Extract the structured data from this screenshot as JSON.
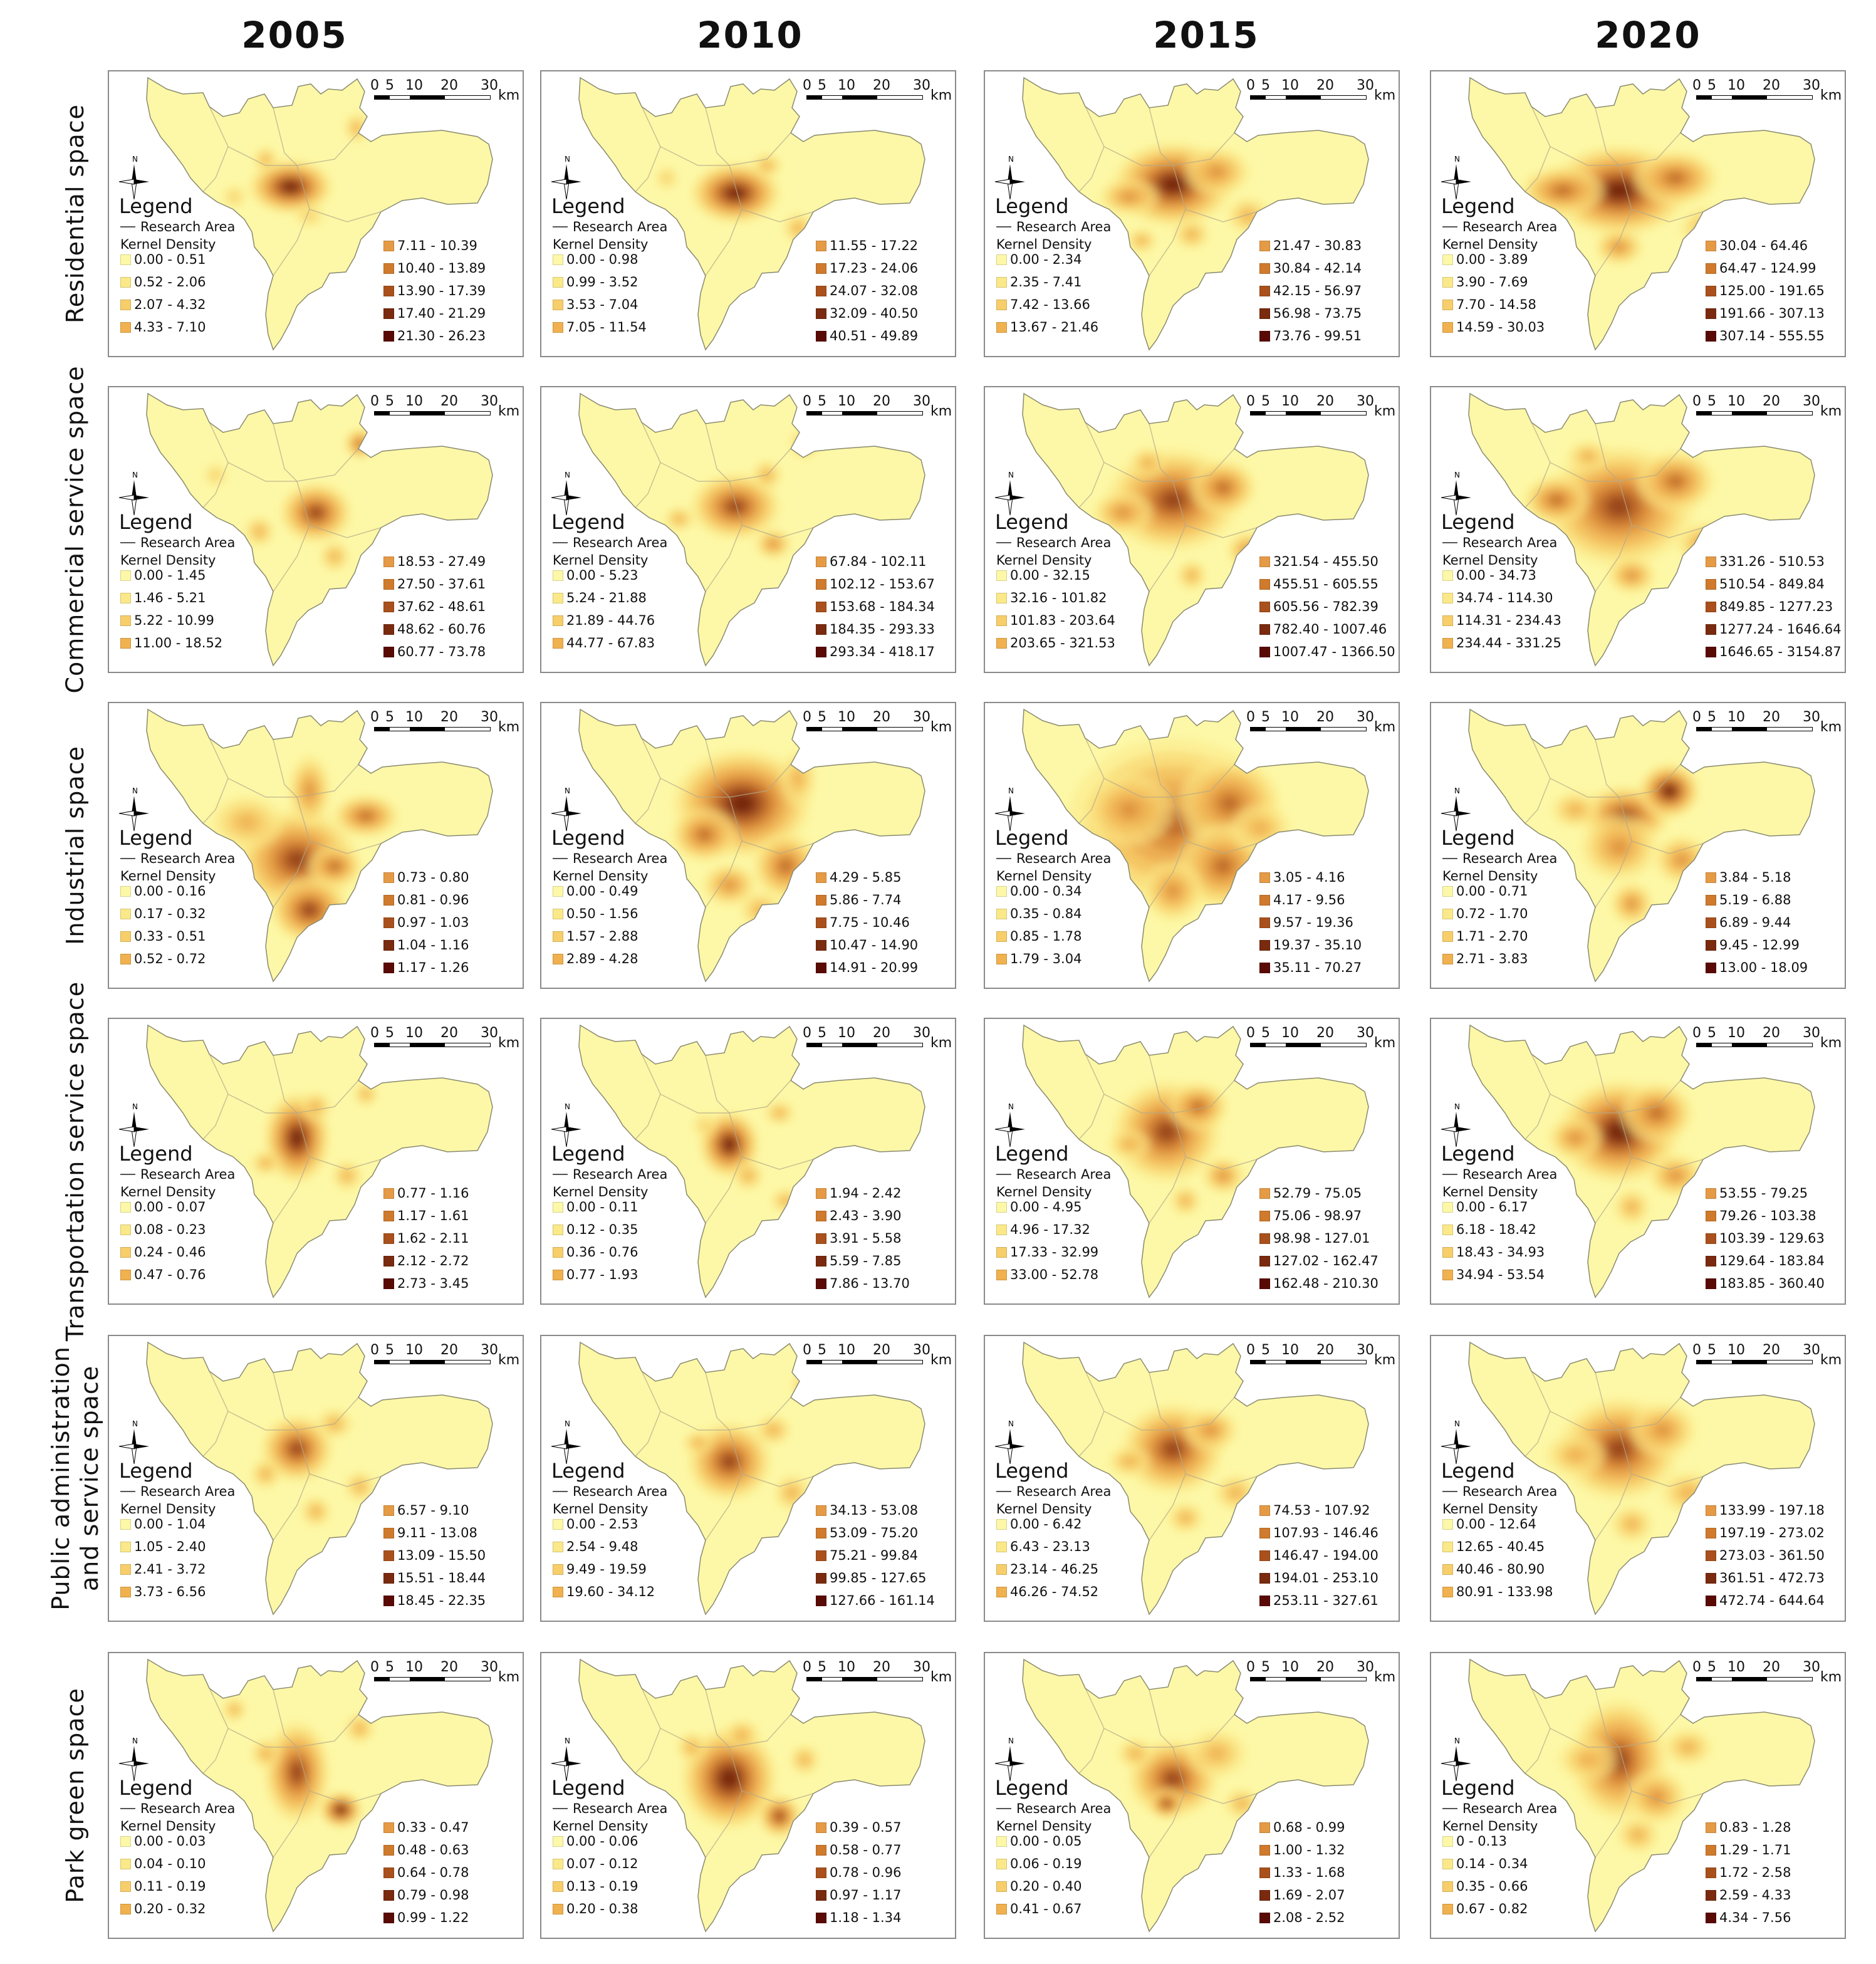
{
  "years": [
    "2005",
    "2010",
    "2015",
    "2020"
  ],
  "legend": {
    "title": "Legend",
    "research_area": "Research Area",
    "kernel_density": "Kernel Density"
  },
  "scale": {
    "ticks": [
      "0",
      "5",
      "10",
      "20",
      "30"
    ],
    "unit": "km"
  },
  "colors": [
    "#fdf8a7",
    "#fbe989",
    "#f7ce6a",
    "#f0b14e",
    "#e59a45",
    "#cf7a2c",
    "#a9501c",
    "#7a2a0e",
    "#5a0a04"
  ],
  "rows": [
    {
      "label": "Residential space",
      "panels": [
        {
          "year": "2005",
          "classes": [
            "0.00 - 0.51",
            "0.52 - 2.06",
            "2.07 - 4.32",
            "4.33 - 7.10",
            "7.11 - 10.39",
            "10.40 - 13.89",
            "13.90 - 17.39",
            "17.40 - 21.29",
            "21.30 - 26.23"
          ]
        },
        {
          "year": "2010",
          "classes": [
            "0.00 - 0.98",
            "0.99 - 3.52",
            "3.53 - 7.04",
            "7.05 - 11.54",
            "11.55 - 17.22",
            "17.23 - 24.06",
            "24.07 - 32.08",
            "32.09 - 40.50",
            "40.51 - 49.89"
          ]
        },
        {
          "year": "2015",
          "classes": [
            "0.00 - 2.34",
            "2.35 - 7.41",
            "7.42 - 13.66",
            "13.67 - 21.46",
            "21.47 - 30.83",
            "30.84 - 42.14",
            "42.15 - 56.97",
            "56.98 - 73.75",
            "73.76 - 99.51"
          ]
        },
        {
          "year": "2020",
          "classes": [
            "0.00 - 3.89",
            "3.90 - 7.69",
            "7.70 - 14.58",
            "14.59 - 30.03",
            "30.04 - 64.46",
            "64.47 - 124.99",
            "125.00 - 191.65",
            "191.66 - 307.13",
            "307.14 - 555.55"
          ]
        }
      ]
    },
    {
      "label": "Commercial service space",
      "panels": [
        {
          "year": "2005",
          "classes": [
            "0.00 - 1.45",
            "1.46 - 5.21",
            "5.22 - 10.99",
            "11.00 - 18.52",
            "18.53 - 27.49",
            "27.50 - 37.61",
            "37.62 - 48.61",
            "48.62 - 60.76",
            "60.77 - 73.78"
          ]
        },
        {
          "year": "2010",
          "classes": [
            "0.00 - 5.23",
            "5.24 - 21.88",
            "21.89 - 44.76",
            "44.77 - 67.83",
            "67.84 - 102.11",
            "102.12 - 153.67",
            "153.68 - 184.34",
            "184.35 - 293.33",
            "293.34 - 418.17"
          ]
        },
        {
          "year": "2015",
          "classes": [
            "0.00 - 32.15",
            "32.16 - 101.82",
            "101.83 - 203.64",
            "203.65 - 321.53",
            "321.54 - 455.50",
            "455.51 - 605.55",
            "605.56 - 782.39",
            "782.40 - 1007.46",
            "1007.47 - 1366.50"
          ]
        },
        {
          "year": "2020",
          "classes": [
            "0.00 - 34.73",
            "34.74 - 114.30",
            "114.31 - 234.43",
            "234.44 - 331.25",
            "331.26 - 510.53",
            "510.54 - 849.84",
            "849.85 - 1277.23",
            "1277.24 - 1646.64",
            "1646.65 - 3154.87"
          ]
        }
      ]
    },
    {
      "label": "Industrial space",
      "panels": [
        {
          "year": "2005",
          "classes": [
            "0.00 - 0.16",
            "0.17 - 0.32",
            "0.33 - 0.51",
            "0.52 - 0.72",
            "0.73 - 0.80",
            "0.81 - 0.96",
            "0.97 - 1.03",
            "1.04 - 1.16",
            "1.17 - 1.26"
          ]
        },
        {
          "year": "2010",
          "classes": [
            "0.00 - 0.49",
            "0.50 - 1.56",
            "1.57 - 2.88",
            "2.89 - 4.28",
            "4.29 - 5.85",
            "5.86 - 7.74",
            "7.75 - 10.46",
            "10.47 - 14.90",
            "14.91 - 20.99"
          ]
        },
        {
          "year": "2015",
          "classes": [
            "0.00 - 0.34",
            "0.35 - 0.84",
            "0.85 - 1.78",
            "1.79 - 3.04",
            "3.05 - 4.16",
            "4.17 - 9.56",
            "9.57 - 19.36",
            "19.37 - 35.10",
            "35.11 - 70.27"
          ]
        },
        {
          "year": "2020",
          "classes": [
            "0.00 - 0.71",
            "0.72 - 1.70",
            "1.71 - 2.70",
            "2.71 - 3.83",
            "3.84 - 5.18",
            "5.19 - 6.88",
            "6.89 - 9.44",
            "9.45 - 12.99",
            "13.00 - 18.09"
          ]
        }
      ]
    },
    {
      "label": "Transportation service space",
      "panels": [
        {
          "year": "2005",
          "classes": [
            "0.00 - 0.07",
            "0.08 - 0.23",
            "0.24 - 0.46",
            "0.47 - 0.76",
            "0.77 - 1.16",
            "1.17 - 1.61",
            "1.62 - 2.11",
            "2.12 - 2.72",
            "2.73 - 3.45"
          ]
        },
        {
          "year": "2010",
          "classes": [
            "0.00 - 0.11",
            "0.12 - 0.35",
            "0.36 - 0.76",
            "0.77 - 1.93",
            "1.94 - 2.42",
            "2.43 - 3.90",
            "3.91 - 5.58",
            "5.59 - 7.85",
            "7.86 - 13.70"
          ]
        },
        {
          "year": "2015",
          "classes": [
            "0.00 - 4.95",
            "4.96 - 17.32",
            "17.33 - 32.99",
            "33.00 - 52.78",
            "52.79 - 75.05",
            "75.06 - 98.97",
            "98.98 - 127.01",
            "127.02 - 162.47",
            "162.48 - 210.30"
          ]
        },
        {
          "year": "2020",
          "classes": [
            "0.00 - 6.17",
            "6.18 - 18.42",
            "18.43 - 34.93",
            "34.94 - 53.54",
            "53.55 - 79.25",
            "79.26 - 103.38",
            "103.39 - 129.63",
            "129.64 - 183.84",
            "183.85 - 360.40"
          ]
        }
      ]
    },
    {
      "label": "Public administration\nand service space",
      "panels": [
        {
          "year": "2005",
          "classes": [
            "0.00 - 1.04",
            "1.05 - 2.40",
            "2.41 - 3.72",
            "3.73 - 6.56",
            "6.57 - 9.10",
            "9.11 - 13.08",
            "13.09 - 15.50",
            "15.51 - 18.44",
            "18.45 - 22.35"
          ]
        },
        {
          "year": "2010",
          "classes": [
            "0.00 - 2.53",
            "2.54 - 9.48",
            "9.49 - 19.59",
            "19.60 - 34.12",
            "34.13 - 53.08",
            "53.09 - 75.20",
            "75.21 - 99.84",
            "99.85 - 127.65",
            "127.66 - 161.14"
          ]
        },
        {
          "year": "2015",
          "classes": [
            "0.00 - 6.42",
            "6.43 - 23.13",
            "23.14 - 46.25",
            "46.26 - 74.52",
            "74.53 - 107.92",
            "107.93 - 146.46",
            "146.47 - 194.00",
            "194.01 - 253.10",
            "253.11 - 327.61"
          ]
        },
        {
          "year": "2020",
          "classes": [
            "0.00 - 12.64",
            "12.65 - 40.45",
            "40.46 - 80.90",
            "80.91 - 133.98",
            "133.99 - 197.18",
            "197.19 - 273.02",
            "273.03 - 361.50",
            "361.51 - 472.73",
            "472.74 - 644.64"
          ]
        }
      ]
    },
    {
      "label": "Park green space",
      "panels": [
        {
          "year": "2005",
          "classes": [
            "0.00 - 0.03",
            "0.04 - 0.10",
            "0.11 - 0.19",
            "0.20 - 0.32",
            "0.33 - 0.47",
            "0.48 - 0.63",
            "0.64 - 0.78",
            "0.79 - 0.98",
            "0.99 - 1.22"
          ]
        },
        {
          "year": "2010",
          "classes": [
            "0.00 - 0.06",
            "0.07 - 0.12",
            "0.13 - 0.19",
            "0.20 - 0.38",
            "0.39 - 0.57",
            "0.58 - 0.77",
            "0.78 - 0.96",
            "0.97 - 1.17",
            "1.18 - 1.34"
          ]
        },
        {
          "year": "2015",
          "classes": [
            "0.00 - 0.05",
            "0.06 - 0.19",
            "0.20 - 0.40",
            "0.41 - 0.67",
            "0.68 - 0.99",
            "1.00 - 1.32",
            "1.33 - 1.68",
            "1.69 - 2.07",
            "2.08 - 2.52"
          ]
        },
        {
          "year": "2020",
          "classes": [
            "0 - 0.13",
            "0.14 - 0.34",
            "0.35 - 0.66",
            "0.67 - 0.82",
            "0.83 - 1.28",
            "1.29 - 1.71",
            "1.72 - 2.58",
            "2.59 - 4.33",
            "4.34 - 7.56"
          ]
        }
      ]
    }
  ]
}
